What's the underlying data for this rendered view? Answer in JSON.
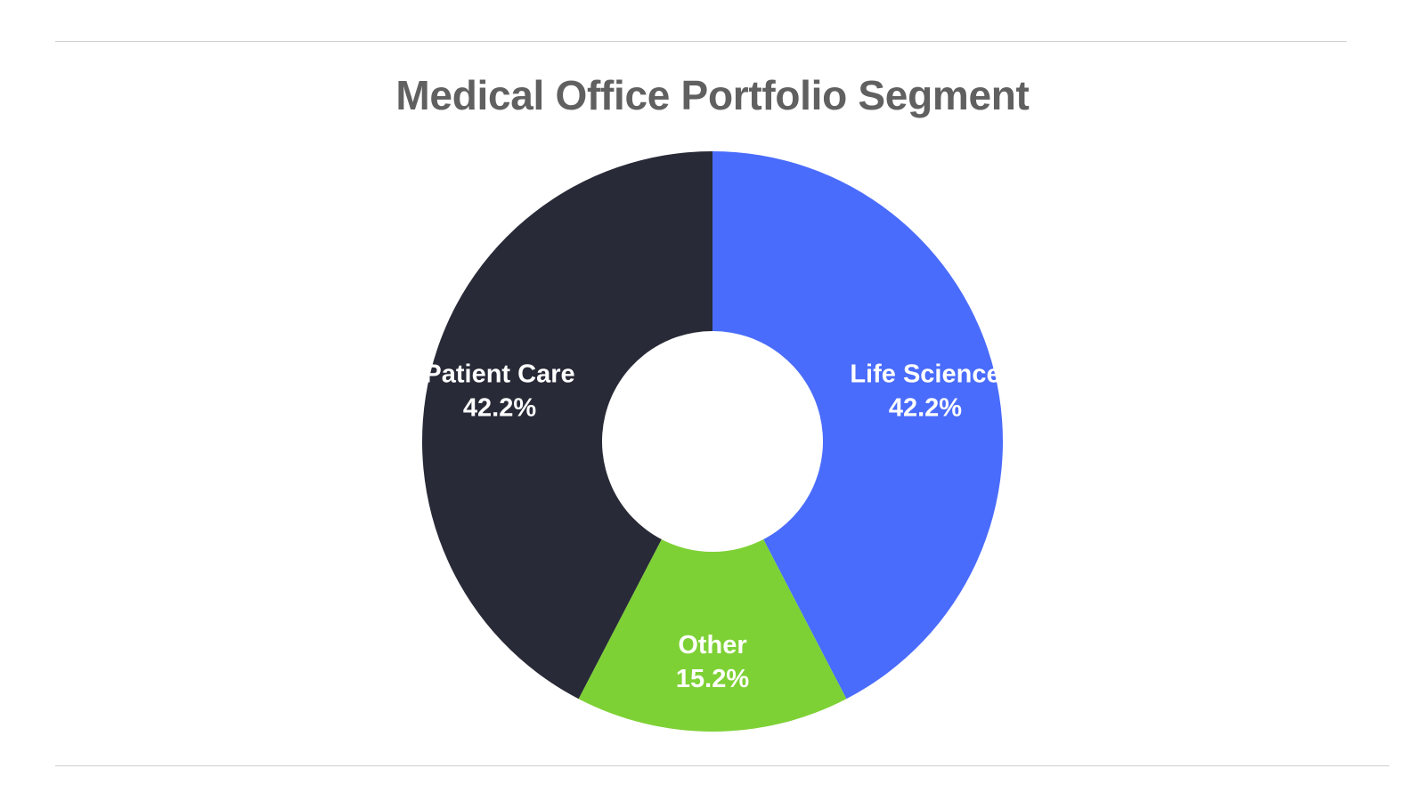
{
  "chart_data": {
    "type": "pie",
    "title": "Medical Office Portfolio Segment",
    "donut": true,
    "categories": [
      "Life Science",
      "Other",
      "Patient Care"
    ],
    "values": [
      42.2,
      15.2,
      42.2
    ],
    "value_labels": [
      "42.2%",
      "15.2%",
      "42.2%"
    ],
    "colors": [
      "#4a6cfc",
      "#7ed135",
      "#282a37"
    ],
    "start": "12 o'clock",
    "direction": "clockwise",
    "legend": "none (labels on slices)"
  }
}
